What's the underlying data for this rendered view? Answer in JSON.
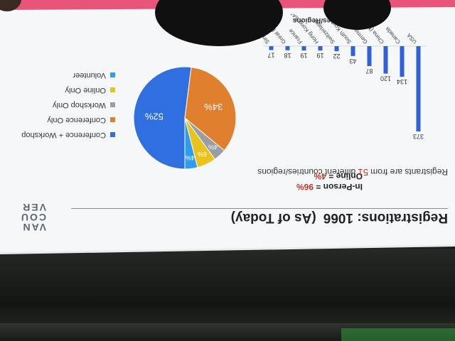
{
  "slide": {
    "title": "Registrations: 1066",
    "as_of": "(As of Today)",
    "logo_lines": [
      "VAN",
      "COU",
      "VER"
    ],
    "attendance": [
      {
        "label": "In-Person",
        "value": "96%"
      },
      {
        "label": "Online",
        "value": "4%"
      }
    ],
    "note_before": "Registrants are from ",
    "note_count": "51",
    "note_after": " different countries/regions"
  },
  "colors": {
    "accent_bar": "#e8547a",
    "bar_blue": "#2f62d8",
    "conference_workshop": "#2f6fe0",
    "conference_only": "#e07f2e",
    "workshop_only": "#9a9ea3",
    "online_only": "#e9c21c",
    "volunteer": "#2e9df0",
    "highlight_red": "#c0322a"
  },
  "chart_data": [
    {
      "type": "pie",
      "labels": [
        "Conference + Workshop",
        "Conference Only",
        "Workshop Only",
        "Online Only",
        "Volunteer"
      ],
      "values": [
        52,
        34,
        4,
        6,
        4
      ],
      "value_labels": [
        "52%",
        "34%",
        "4%",
        "6%",
        "4%"
      ],
      "legend": "right"
    },
    {
      "type": "bar",
      "title": "Top 10 Countries/Regions",
      "categories": [
        "USA",
        "Canada",
        "China (Mainland)",
        "Germany",
        "South Korea",
        "Switzerland",
        "Hong Kong SAR",
        "France",
        "Great Britain",
        "Singapore"
      ],
      "values": [
        373,
        134,
        120,
        87,
        43,
        22,
        19,
        19,
        18,
        17
      ]
    }
  ]
}
